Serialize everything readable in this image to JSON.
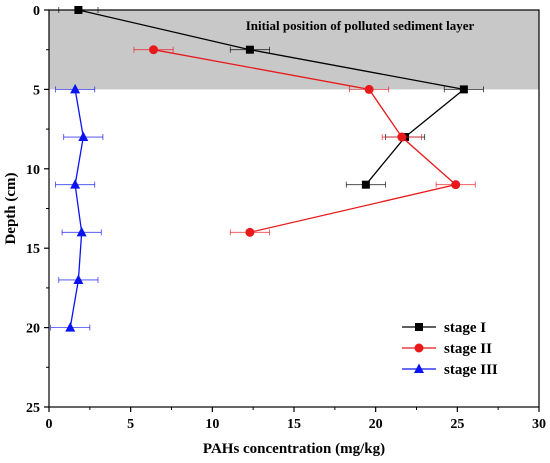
{
  "chart_data": {
    "type": "line",
    "xlabel": "PAHs concentration (mg/kg)",
    "ylabel": "Depth (cm)",
    "xlim": [
      0,
      30
    ],
    "ylim": [
      0,
      25
    ],
    "y_inverted": true,
    "x_axis_position": "top-values-bottom-labels",
    "x_ticks": [
      0,
      5,
      10,
      15,
      20,
      25,
      30
    ],
    "y_ticks": [
      0,
      5,
      10,
      15,
      20,
      25
    ],
    "grid": false,
    "legend_position": "bottom-right",
    "shaded_region": {
      "y_from": 0,
      "y_to": 5,
      "color": "#c8c8c8",
      "label": "Initial position of polluted sediment layer"
    },
    "series": [
      {
        "name": "stage I",
        "color": "#000000",
        "marker": "square",
        "points": [
          {
            "x": 1.8,
            "y": 0,
            "xerr": 1.2
          },
          {
            "x": 12.3,
            "y": 2.5,
            "xerr": 1.2
          },
          {
            "x": 25.4,
            "y": 5,
            "xerr": 1.2
          },
          {
            "x": 21.8,
            "y": 8,
            "xerr": 1.2
          },
          {
            "x": 19.4,
            "y": 11,
            "xerr": 1.2
          }
        ]
      },
      {
        "name": "stage II",
        "color": "#e8191b",
        "marker": "circle",
        "points": [
          {
            "x": 6.4,
            "y": 2.5,
            "xerr": 1.2
          },
          {
            "x": 19.6,
            "y": 5,
            "xerr": 1.2
          },
          {
            "x": 21.6,
            "y": 8,
            "xerr": 1.2
          },
          {
            "x": 24.9,
            "y": 11,
            "xerr": 1.2
          },
          {
            "x": 12.3,
            "y": 14,
            "xerr": 1.2
          }
        ]
      },
      {
        "name": "stage III",
        "color": "#0a14f0",
        "marker": "triangle",
        "points": [
          {
            "x": 1.6,
            "y": 5,
            "xerr": 1.2
          },
          {
            "x": 2.1,
            "y": 8,
            "xerr": 1.2
          },
          {
            "x": 1.6,
            "y": 11,
            "xerr": 1.2
          },
          {
            "x": 2.0,
            "y": 14,
            "xerr": 1.2
          },
          {
            "x": 1.8,
            "y": 17,
            "xerr": 1.2
          },
          {
            "x": 1.3,
            "y": 20,
            "xerr": 1.2
          }
        ]
      }
    ]
  }
}
